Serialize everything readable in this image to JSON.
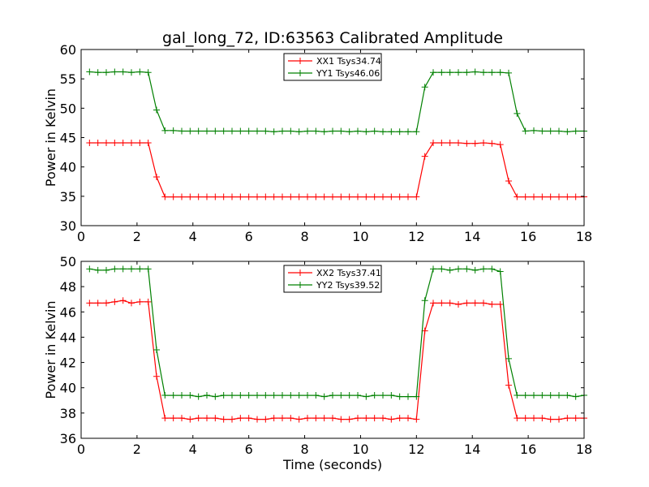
{
  "figure": {
    "title": "gal_long_72, ID:63563 Calibrated Amplitude"
  },
  "chart_data": [
    {
      "type": "line",
      "title": "gal_long_72, ID:63563 Calibrated Amplitude",
      "xlabel": "",
      "ylabel": "Power in Kelvin",
      "xlim": [
        0,
        18
      ],
      "ylim": [
        30,
        60
      ],
      "xticks": [
        0,
        2,
        4,
        6,
        8,
        10,
        12,
        14,
        16,
        18
      ],
      "yticks": [
        30,
        35,
        40,
        45,
        50,
        55,
        60
      ],
      "legend_position": "top-center",
      "grid": false,
      "x": [
        0.3,
        0.6,
        0.9,
        1.2,
        1.5,
        1.8,
        2.1,
        2.4,
        2.7,
        3.0,
        3.3,
        3.6,
        3.9,
        4.2,
        4.5,
        4.8,
        5.1,
        5.4,
        5.7,
        6.0,
        6.3,
        6.6,
        6.9,
        7.2,
        7.5,
        7.8,
        8.1,
        8.4,
        8.7,
        9.0,
        9.3,
        9.6,
        9.9,
        10.2,
        10.5,
        10.8,
        11.1,
        11.4,
        11.7,
        12.0,
        12.3,
        12.6,
        12.9,
        13.2,
        13.5,
        13.8,
        14.1,
        14.4,
        14.7,
        15.0,
        15.3,
        15.6,
        15.9,
        16.2,
        16.5,
        16.8,
        17.1,
        17.4,
        17.7,
        18.0
      ],
      "series": [
        {
          "name": "XX1 Tsys34.74",
          "color": "#ff0000",
          "values": [
            44.1,
            44.1,
            44.1,
            44.1,
            44.1,
            44.1,
            44.1,
            44.1,
            38.3,
            34.9,
            34.9,
            34.9,
            34.9,
            34.9,
            34.9,
            34.9,
            34.9,
            34.9,
            34.9,
            34.9,
            34.9,
            34.9,
            34.9,
            34.9,
            34.9,
            34.9,
            34.9,
            34.9,
            34.9,
            34.9,
            34.9,
            34.9,
            34.9,
            34.9,
            34.9,
            34.9,
            34.9,
            34.9,
            34.9,
            34.9,
            41.8,
            44.1,
            44.1,
            44.1,
            44.1,
            44.0,
            44.0,
            44.1,
            44.0,
            43.8,
            37.6,
            34.9,
            34.9,
            34.9,
            34.9,
            34.9,
            34.9,
            34.9,
            34.9,
            34.9
          ]
        },
        {
          "name": "YY1 Tsys46.06",
          "color": "#008000",
          "values": [
            56.2,
            56.1,
            56.1,
            56.2,
            56.2,
            56.1,
            56.2,
            56.1,
            49.7,
            46.2,
            46.2,
            46.1,
            46.1,
            46.1,
            46.1,
            46.1,
            46.1,
            46.1,
            46.1,
            46.1,
            46.1,
            46.1,
            46.0,
            46.1,
            46.1,
            46.0,
            46.1,
            46.1,
            46.0,
            46.1,
            46.1,
            46.0,
            46.1,
            46.0,
            46.1,
            46.0,
            46.0,
            46.0,
            46.0,
            46.0,
            53.6,
            56.1,
            56.1,
            56.1,
            56.1,
            56.1,
            56.2,
            56.1,
            56.1,
            56.1,
            56.0,
            49.1,
            46.1,
            46.2,
            46.1,
            46.1,
            46.1,
            46.0,
            46.1,
            46.1
          ]
        }
      ]
    },
    {
      "type": "line",
      "title": "",
      "xlabel": "Time (seconds)",
      "ylabel": "Power in Kelvin",
      "xlim": [
        0,
        18
      ],
      "ylim": [
        36,
        50
      ],
      "xticks": [
        0,
        2,
        4,
        6,
        8,
        10,
        12,
        14,
        16,
        18
      ],
      "yticks": [
        36,
        38,
        40,
        42,
        44,
        46,
        48,
        50
      ],
      "legend_position": "top-center",
      "grid": false,
      "x": [
        0.3,
        0.6,
        0.9,
        1.2,
        1.5,
        1.8,
        2.1,
        2.4,
        2.7,
        3.0,
        3.3,
        3.6,
        3.9,
        4.2,
        4.5,
        4.8,
        5.1,
        5.4,
        5.7,
        6.0,
        6.3,
        6.6,
        6.9,
        7.2,
        7.5,
        7.8,
        8.1,
        8.4,
        8.7,
        9.0,
        9.3,
        9.6,
        9.9,
        10.2,
        10.5,
        10.8,
        11.1,
        11.4,
        11.7,
        12.0,
        12.3,
        12.6,
        12.9,
        13.2,
        13.5,
        13.8,
        14.1,
        14.4,
        14.7,
        15.0,
        15.3,
        15.6,
        15.9,
        16.2,
        16.5,
        16.8,
        17.1,
        17.4,
        17.7,
        18.0
      ],
      "series": [
        {
          "name": "XX2 Tsys37.41",
          "color": "#ff0000",
          "values": [
            46.7,
            46.7,
            46.7,
            46.8,
            46.9,
            46.7,
            46.8,
            46.8,
            40.9,
            37.6,
            37.6,
            37.6,
            37.5,
            37.6,
            37.6,
            37.6,
            37.5,
            37.5,
            37.6,
            37.6,
            37.5,
            37.5,
            37.6,
            37.6,
            37.6,
            37.5,
            37.6,
            37.6,
            37.6,
            37.6,
            37.5,
            37.5,
            37.6,
            37.6,
            37.6,
            37.6,
            37.5,
            37.6,
            37.6,
            37.5,
            44.5,
            46.7,
            46.7,
            46.7,
            46.6,
            46.7,
            46.7,
            46.7,
            46.6,
            46.6,
            40.2,
            37.6,
            37.6,
            37.6,
            37.6,
            37.5,
            37.5,
            37.6,
            37.6,
            37.6
          ]
        },
        {
          "name": "YY2 Tsys39.52",
          "color": "#008000",
          "values": [
            49.4,
            49.3,
            49.3,
            49.4,
            49.4,
            49.4,
            49.4,
            49.4,
            43.0,
            39.4,
            39.4,
            39.4,
            39.4,
            39.3,
            39.4,
            39.3,
            39.4,
            39.4,
            39.4,
            39.4,
            39.4,
            39.4,
            39.4,
            39.4,
            39.4,
            39.4,
            39.4,
            39.4,
            39.3,
            39.4,
            39.4,
            39.4,
            39.4,
            39.3,
            39.4,
            39.4,
            39.4,
            39.3,
            39.3,
            39.3,
            46.9,
            49.4,
            49.4,
            49.3,
            49.4,
            49.4,
            49.3,
            49.4,
            49.4,
            49.2,
            42.3,
            39.4,
            39.4,
            39.4,
            39.4,
            39.4,
            39.4,
            39.4,
            39.3,
            39.4
          ]
        }
      ]
    }
  ]
}
